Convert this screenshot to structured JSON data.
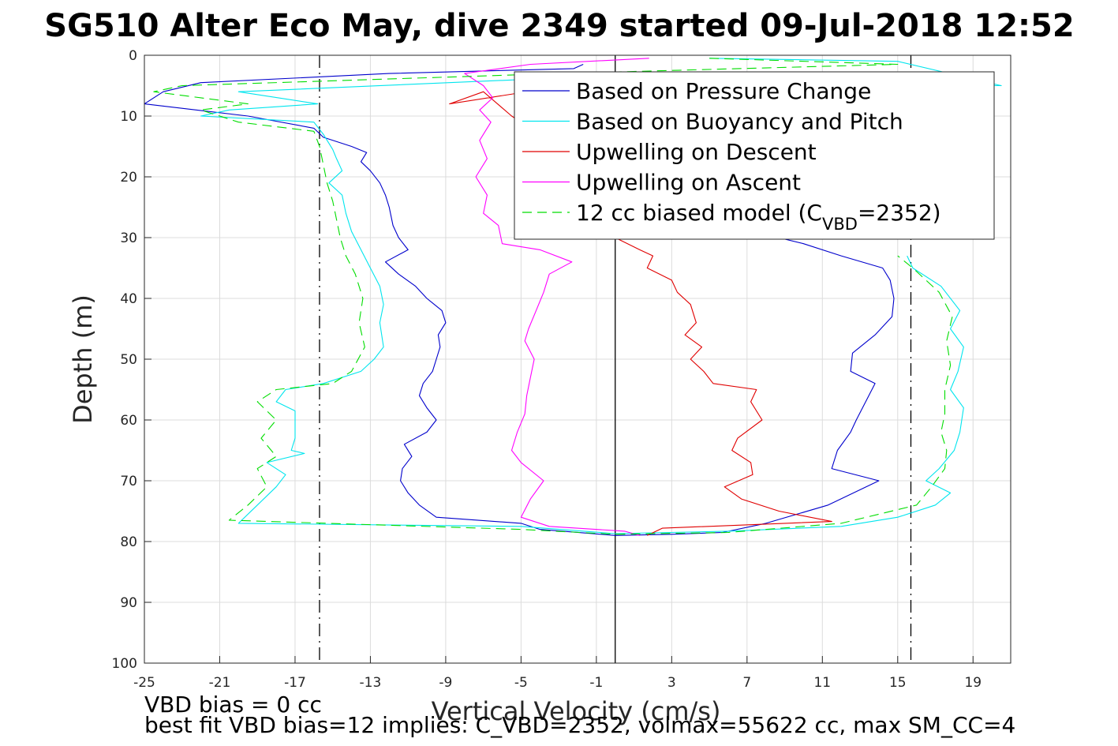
{
  "chart_data": {
    "type": "line",
    "title": "SG510 Alter Eco May, dive 2349 started 09-Jul-2018 12:52",
    "xlabel": "Vertical Velocity (cm/s)",
    "ylabel": "Depth (m)",
    "xlim": [
      -25,
      21
    ],
    "ylim": [
      0,
      100
    ],
    "y_reversed": true,
    "grid": true,
    "x_ticks": [
      -25,
      -21,
      -17,
      -13,
      -9,
      -5,
      -1,
      3,
      7,
      11,
      15,
      19
    ],
    "y_ticks": [
      0,
      10,
      20,
      30,
      40,
      50,
      60,
      70,
      80,
      90,
      100
    ],
    "legend": {
      "position": "top-right",
      "entries": [
        {
          "label": "Based on Pressure Change",
          "color": "#0000cc",
          "style": "solid"
        },
        {
          "label": "Based on Buoyancy and Pitch",
          "color": "#00e5ee",
          "style": "solid"
        },
        {
          "label": "Upwelling on Descent",
          "color": "#e00000",
          "style": "solid"
        },
        {
          "label": "Upwelling on Ascent",
          "color": "#ff00ff",
          "style": "solid"
        },
        {
          "label": "12 cc biased model (C_VBD=2352)",
          "label_main": "12 cc biased model (C",
          "label_sub": "VBD",
          "label_end": "=2352)",
          "color": "#00dd00",
          "style": "dashed"
        }
      ]
    },
    "reference_lines": [
      {
        "x": -15.7,
        "style": "dashdot",
        "color": "#000000"
      },
      {
        "x": 0,
        "style": "solid",
        "color": "#000000"
      },
      {
        "x": 15.7,
        "style": "dashdot",
        "color": "#000000"
      }
    ],
    "series": [
      {
        "name": "Based on Pressure Change",
        "color": "#0000cc",
        "dashed": false,
        "points": [
          [
            -1.7,
            1.5
          ],
          [
            -2.2,
            2.2
          ],
          [
            -12,
            3
          ],
          [
            -22,
            4.5
          ],
          [
            -24,
            6
          ],
          [
            -25,
            8
          ],
          [
            -19.5,
            10
          ],
          [
            -16,
            12
          ],
          [
            -15.5,
            13.5
          ],
          [
            -14,
            15
          ],
          [
            -13.2,
            16
          ],
          [
            -13.5,
            17.5
          ],
          [
            -13,
            19
          ],
          [
            -12.5,
            21
          ],
          [
            -12.2,
            23
          ],
          [
            -12,
            25
          ],
          [
            -11.8,
            28
          ],
          [
            -11.5,
            30
          ],
          [
            -11,
            32
          ],
          [
            -12.2,
            34
          ],
          [
            -11.5,
            36
          ],
          [
            -10.6,
            38
          ],
          [
            -10,
            40
          ],
          [
            -9.2,
            42
          ],
          [
            -9,
            44
          ],
          [
            -9.4,
            46
          ],
          [
            -9.3,
            48
          ],
          [
            -9.5,
            50
          ],
          [
            -9.7,
            52
          ],
          [
            -10.2,
            54
          ],
          [
            -10.4,
            56
          ],
          [
            -10,
            58
          ],
          [
            -9.5,
            60
          ],
          [
            -10,
            62
          ],
          [
            -11.2,
            64
          ],
          [
            -10.8,
            66
          ],
          [
            -11.3,
            68
          ],
          [
            -11.4,
            70
          ],
          [
            -11,
            72
          ],
          [
            -10.4,
            74
          ],
          [
            -9.5,
            76
          ],
          [
            -5,
            77
          ],
          [
            -4,
            78
          ],
          [
            0,
            79
          ],
          [
            3,
            78.8
          ],
          [
            5.7,
            78.5
          ],
          [
            8,
            77
          ],
          [
            11.3,
            74
          ],
          [
            14,
            70
          ],
          [
            11.5,
            68
          ],
          [
            11.8,
            65
          ],
          [
            12.5,
            62
          ],
          [
            12.8,
            60
          ],
          [
            13.3,
            57
          ],
          [
            13.8,
            54
          ],
          [
            12.5,
            52
          ],
          [
            12.6,
            49
          ],
          [
            13.8,
            46
          ],
          [
            14.7,
            43
          ],
          [
            14.8,
            40
          ],
          [
            14.6,
            37
          ],
          [
            14.2,
            35
          ],
          [
            12,
            33
          ],
          [
            10,
            31
          ],
          [
            8,
            29.5
          ]
        ]
      },
      {
        "name": "Based on Buoyancy and Pitch",
        "color": "#00e5ee",
        "dashed": false,
        "points": [
          [
            5,
            0.5
          ],
          [
            15,
            1
          ],
          [
            20.5,
            5
          ],
          [
            -5,
            4
          ],
          [
            -20,
            6
          ],
          [
            -15.8,
            8
          ],
          [
            -20.5,
            9
          ],
          [
            -22,
            10
          ],
          [
            -16,
            11
          ],
          [
            -15.5,
            13
          ],
          [
            -15,
            15.5
          ],
          [
            -14.8,
            17
          ],
          [
            -14.5,
            19
          ],
          [
            -15.2,
            21
          ],
          [
            -14.5,
            23
          ],
          [
            -14.3,
            26
          ],
          [
            -14,
            29
          ],
          [
            -13.5,
            32
          ],
          [
            -13,
            35
          ],
          [
            -12.5,
            38
          ],
          [
            -12.3,
            41
          ],
          [
            -12.5,
            44
          ],
          [
            -12.3,
            48
          ],
          [
            -12.8,
            50
          ],
          [
            -13.5,
            52
          ],
          [
            -15.5,
            54
          ],
          [
            -17.5,
            55
          ],
          [
            -18,
            57
          ],
          [
            -17,
            58.5
          ],
          [
            -17,
            61
          ],
          [
            -17,
            63
          ],
          [
            -17.2,
            65
          ],
          [
            -16.5,
            65.5
          ],
          [
            -18.5,
            67
          ],
          [
            -17.5,
            69
          ],
          [
            -18,
            71
          ],
          [
            -19,
            74
          ],
          [
            -20,
            77
          ],
          [
            -5,
            77.5
          ],
          [
            0,
            78.7
          ],
          [
            6,
            78.3
          ],
          [
            12,
            77.5
          ],
          [
            15,
            76
          ],
          [
            17,
            74
          ],
          [
            17.8,
            72
          ],
          [
            16.5,
            70
          ],
          [
            17.2,
            68
          ],
          [
            18,
            65
          ],
          [
            18.3,
            62
          ],
          [
            18.5,
            58
          ],
          [
            17.8,
            55
          ],
          [
            18.2,
            52
          ],
          [
            18.5,
            48
          ],
          [
            17.8,
            45
          ],
          [
            18.3,
            42
          ],
          [
            17.3,
            38
          ],
          [
            15.8,
            35
          ],
          [
            15.5,
            33
          ]
        ]
      },
      {
        "name": "Upwelling on Descent",
        "color": "#e00000",
        "dashed": false,
        "points": [
          [
            1.5,
            3
          ],
          [
            -8.8,
            8
          ],
          [
            -7,
            6
          ],
          [
            -5.5,
            10
          ],
          [
            -4.5,
            12
          ],
          [
            0,
            30
          ],
          [
            1.3,
            32
          ],
          [
            2,
            33
          ],
          [
            1.7,
            35
          ],
          [
            3,
            37
          ],
          [
            3.3,
            39
          ],
          [
            4,
            41
          ],
          [
            4.3,
            44
          ],
          [
            3.7,
            46
          ],
          [
            4.6,
            48
          ],
          [
            4,
            50
          ],
          [
            4.7,
            52
          ],
          [
            5.2,
            54
          ],
          [
            7.5,
            55
          ],
          [
            7.2,
            57
          ],
          [
            7.8,
            60
          ],
          [
            6.5,
            63
          ],
          [
            6.2,
            65
          ],
          [
            7.2,
            67
          ],
          [
            7.3,
            69
          ],
          [
            5.8,
            71
          ],
          [
            6.7,
            73
          ],
          [
            8.7,
            75
          ],
          [
            11.5,
            76.7
          ],
          [
            2.5,
            77.8
          ],
          [
            1.7,
            79
          ]
        ]
      },
      {
        "name": "Upwelling on Ascent",
        "color": "#ff00ff",
        "dashed": false,
        "points": [
          [
            1.8,
            0.5
          ],
          [
            -4.5,
            1.5
          ],
          [
            -8,
            3
          ],
          [
            -7,
            5
          ],
          [
            -6.5,
            7
          ],
          [
            -7.2,
            9
          ],
          [
            -6.6,
            11
          ],
          [
            -7.2,
            14
          ],
          [
            -6.8,
            17
          ],
          [
            -7.4,
            20
          ],
          [
            -6.8,
            23
          ],
          [
            -7,
            26
          ],
          [
            -6.2,
            28
          ],
          [
            -6,
            31
          ],
          [
            -4,
            32
          ],
          [
            -2.3,
            34
          ],
          [
            -3.5,
            36
          ],
          [
            -3.8,
            39
          ],
          [
            -4.2,
            42
          ],
          [
            -4.6,
            45
          ],
          [
            -4.8,
            47
          ],
          [
            -4.3,
            50
          ],
          [
            -4.5,
            53
          ],
          [
            -4.7,
            56
          ],
          [
            -4.8,
            59
          ],
          [
            -5.2,
            62
          ],
          [
            -5.5,
            65
          ],
          [
            -5,
            67
          ],
          [
            -3.8,
            70
          ],
          [
            -4.5,
            73
          ],
          [
            -5,
            76
          ],
          [
            -3.5,
            77.5
          ],
          [
            0.5,
            78.3
          ],
          [
            1.3,
            79
          ]
        ]
      },
      {
        "name": "12 cc biased model (C_VBD=2352)",
        "color": "#00dd00",
        "dashed": true,
        "points": [
          [
            5,
            0.5
          ],
          [
            15,
            1.5
          ],
          [
            -3,
            3
          ],
          [
            -23,
            5
          ],
          [
            -24.5,
            6
          ],
          [
            -19.5,
            8
          ],
          [
            -22,
            9
          ],
          [
            -20,
            11
          ],
          [
            -16,
            12.5
          ],
          [
            -15.7,
            15
          ],
          [
            -15.5,
            18
          ],
          [
            -15.3,
            21
          ],
          [
            -15,
            24
          ],
          [
            -14.8,
            27
          ],
          [
            -14.6,
            30
          ],
          [
            -14.3,
            33
          ],
          [
            -13.8,
            36
          ],
          [
            -13.4,
            40
          ],
          [
            -13.6,
            44
          ],
          [
            -13.3,
            48
          ],
          [
            -14,
            52
          ],
          [
            -15,
            54
          ],
          [
            -18,
            55
          ],
          [
            -19,
            57
          ],
          [
            -18,
            60
          ],
          [
            -18.8,
            63
          ],
          [
            -18,
            66
          ],
          [
            -19,
            68
          ],
          [
            -18.5,
            71
          ],
          [
            -19.5,
            74
          ],
          [
            -20.5,
            76.5
          ],
          [
            -5,
            78
          ],
          [
            0,
            78.8
          ],
          [
            6,
            78.5
          ],
          [
            12,
            77
          ],
          [
            16,
            74
          ],
          [
            16.8,
            71
          ],
          [
            17.5,
            68
          ],
          [
            17.6,
            65
          ],
          [
            17.3,
            62
          ],
          [
            17.5,
            59
          ],
          [
            17.5,
            55
          ],
          [
            17.8,
            51
          ],
          [
            17.6,
            47
          ],
          [
            17.9,
            43
          ],
          [
            17.2,
            39
          ],
          [
            15.8,
            35
          ],
          [
            15,
            33
          ]
        ]
      }
    ],
    "annotations": [
      "VBD bias = 0 cc",
      "best fit VBD bias=12 implies: C_VBD=2352, volmax=55622 cc, max SM_CC=4"
    ]
  }
}
